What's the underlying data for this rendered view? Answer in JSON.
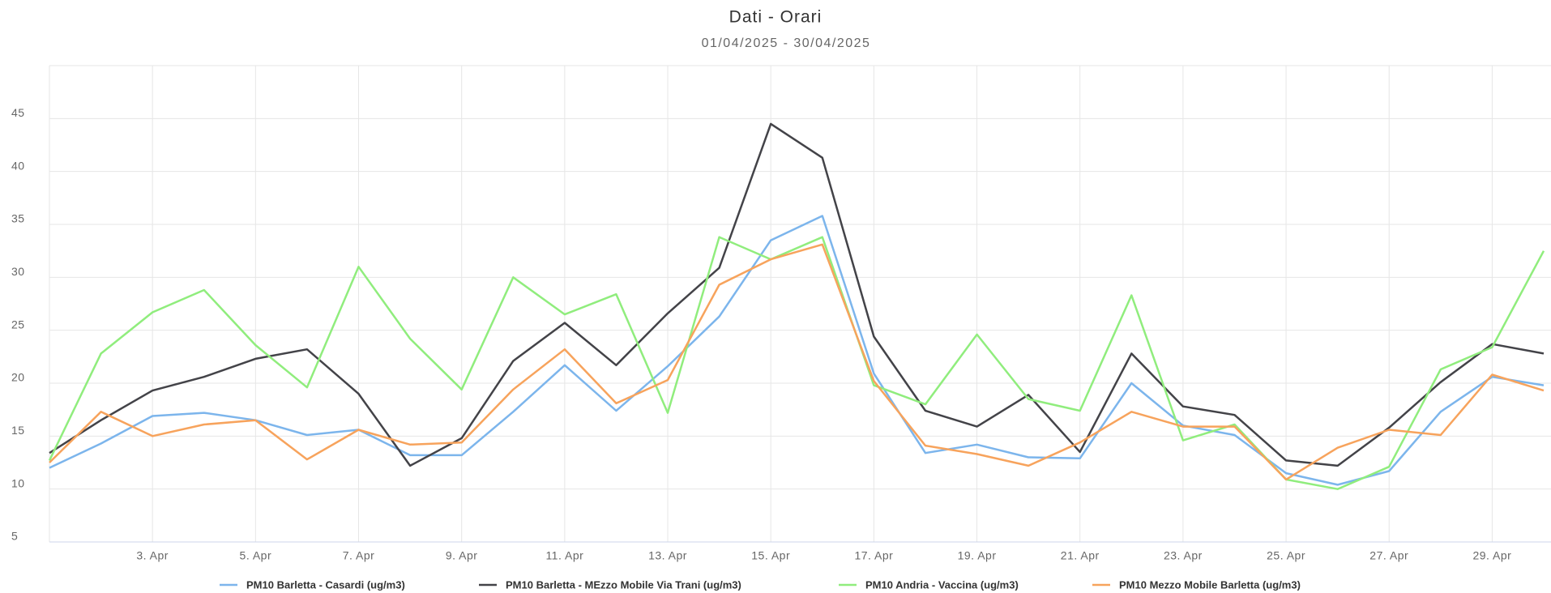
{
  "chart_data": {
    "type": "line",
    "title": "Dati - Orari",
    "subtitle": "01/04/2025 - 30/04/2025",
    "categories": [
      null,
      null,
      "3. Apr",
      null,
      "5. Apr",
      null,
      "7. Apr",
      null,
      "9. Apr",
      null,
      "11. Apr",
      null,
      "13. Apr",
      null,
      "15. Apr",
      null,
      "17. Apr",
      null,
      "19. Apr",
      null,
      "21. Apr",
      null,
      "23. Apr",
      null,
      "25. Apr",
      null,
      "27. Apr",
      null,
      "29. Apr",
      null
    ],
    "ylim": [
      5,
      50
    ],
    "yticks": [
      5,
      10,
      15,
      20,
      25,
      30,
      35,
      40,
      45
    ],
    "grid": true,
    "series": [
      {
        "name": "PM10 Barletta - Casardi (ug/m3)",
        "color": "#7cb5ec",
        "values": [
          12.0,
          14.3,
          16.9,
          17.2,
          16.5,
          15.1,
          15.6,
          13.2,
          13.2,
          17.3,
          21.7,
          17.4,
          21.6,
          26.3,
          33.5,
          35.8,
          20.9,
          13.4,
          14.2,
          13.0,
          12.9,
          20.0,
          16.0,
          15.1,
          11.5,
          10.4,
          11.7,
          17.3,
          20.6,
          19.8
        ]
      },
      {
        "name": "PM10 Barletta - MEzzo Mobile Via Trani (ug/m3)",
        "color": "#434348",
        "values": [
          13.4,
          16.5,
          19.3,
          20.6,
          22.3,
          23.2,
          19.0,
          12.2,
          14.8,
          22.1,
          25.7,
          21.7,
          26.6,
          30.9,
          44.5,
          41.3,
          24.4,
          17.4,
          15.9,
          18.9,
          13.5,
          22.8,
          17.8,
          17.0,
          12.7,
          12.2,
          15.8,
          20.1,
          23.7,
          22.8
        ]
      },
      {
        "name": "PM10 Andria - Vaccina (ug/m3)",
        "color": "#90ed7d",
        "values": [
          12.7,
          22.8,
          26.7,
          28.8,
          23.6,
          19.6,
          31.0,
          24.2,
          19.4,
          30.0,
          26.5,
          28.4,
          17.2,
          33.8,
          31.7,
          33.8,
          19.8,
          18.0,
          24.6,
          18.5,
          17.4,
          28.3,
          14.6,
          16.1,
          10.9,
          10.0,
          12.1,
          21.3,
          23.4,
          32.5
        ]
      },
      {
        "name": "PM10 Mezzo Mobile Barletta (ug/m3)",
        "color": "#f7a35c",
        "values": [
          12.5,
          17.3,
          15.0,
          16.1,
          16.5,
          12.8,
          15.6,
          14.2,
          14.4,
          19.4,
          23.2,
          18.1,
          20.3,
          29.3,
          31.7,
          33.1,
          20.2,
          14.1,
          13.3,
          12.2,
          14.4,
          17.3,
          15.9,
          15.9,
          10.9,
          13.9,
          15.6,
          15.1,
          20.8,
          19.3
        ]
      }
    ]
  }
}
